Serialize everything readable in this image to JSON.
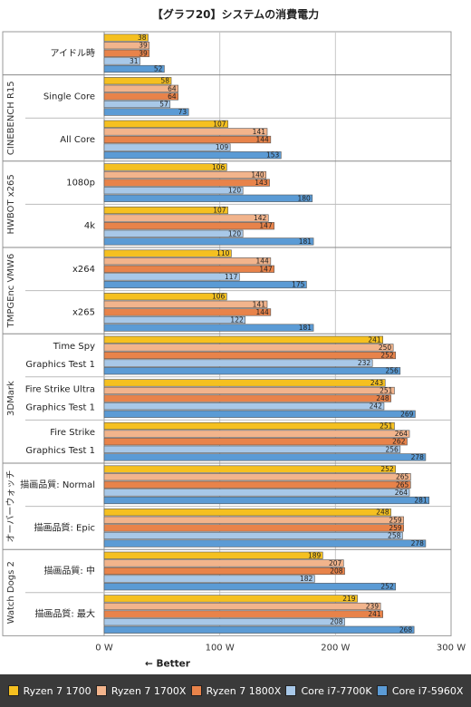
{
  "chart_data": {
    "type": "bar",
    "orientation": "horizontal",
    "title": "【グラフ20】システムの消費電力",
    "xlim": [
      0,
      300
    ],
    "xticks": [
      "0 W",
      "100 W",
      "200 W",
      "300 W"
    ],
    "direction_note": "← Better",
    "grid": true,
    "legend_position": "bottom",
    "series": [
      {
        "name": "Ryzen 7 1700",
        "color": "#f5c020"
      },
      {
        "name": "Ryzen 7 1700X",
        "color": "#f2b48c"
      },
      {
        "name": "Ryzen 7 1800X",
        "color": "#e8834a"
      },
      {
        "name": "Core i7-7700K",
        "color": "#a8c8e8"
      },
      {
        "name": "Core i7-5960X",
        "color": "#5b9bd5"
      }
    ],
    "groups": [
      {
        "name": "",
        "categories": [
          {
            "label": [
              "アイドル時"
            ],
            "values": [
              38,
              39,
              39,
              31,
              52
            ]
          }
        ]
      },
      {
        "name": "CINEBENCH R15",
        "categories": [
          {
            "label": [
              "Single Core"
            ],
            "values": [
              58,
              64,
              64,
              57,
              73
            ]
          },
          {
            "label": [
              "All Core"
            ],
            "values": [
              107,
              141,
              144,
              109,
              153
            ]
          }
        ]
      },
      {
        "name": "HWBOT x265",
        "categories": [
          {
            "label": [
              "1080p"
            ],
            "values": [
              106,
              140,
              143,
              120,
              180
            ]
          },
          {
            "label": [
              "4k"
            ],
            "values": [
              107,
              142,
              147,
              120,
              181
            ]
          }
        ]
      },
      {
        "name": "TMPGEnc VMW6",
        "categories": [
          {
            "label": [
              "x264"
            ],
            "values": [
              110,
              144,
              147,
              117,
              175
            ]
          },
          {
            "label": [
              "x265"
            ],
            "values": [
              106,
              141,
              144,
              122,
              181
            ]
          }
        ]
      },
      {
        "name": "3DMark",
        "categories": [
          {
            "label": [
              "Time Spy",
              "Graphics Test 1"
            ],
            "values": [
              241,
              250,
              252,
              232,
              256
            ]
          },
          {
            "label": [
              "Fire Strike Ultra",
              "Graphics Test 1"
            ],
            "values": [
              243,
              251,
              248,
              242,
              269
            ]
          },
          {
            "label": [
              "Fire Strike",
              "Graphics Test 1"
            ],
            "values": [
              251,
              264,
              262,
              256,
              278
            ]
          }
        ]
      },
      {
        "name": "オーバーウォッチ",
        "categories": [
          {
            "label": [
              "描画品質: Normal"
            ],
            "values": [
              252,
              265,
              265,
              264,
              281
            ]
          },
          {
            "label": [
              "描画品質: Epic"
            ],
            "values": [
              248,
              259,
              259,
              258,
              278
            ]
          }
        ]
      },
      {
        "name": "Watch Dogs 2",
        "categories": [
          {
            "label": [
              "描画品質: 中"
            ],
            "values": [
              189,
              207,
              208,
              182,
              252
            ]
          },
          {
            "label": [
              "描画品質: 最大"
            ],
            "values": [
              219,
              239,
              241,
              208,
              268
            ]
          }
        ]
      }
    ]
  }
}
